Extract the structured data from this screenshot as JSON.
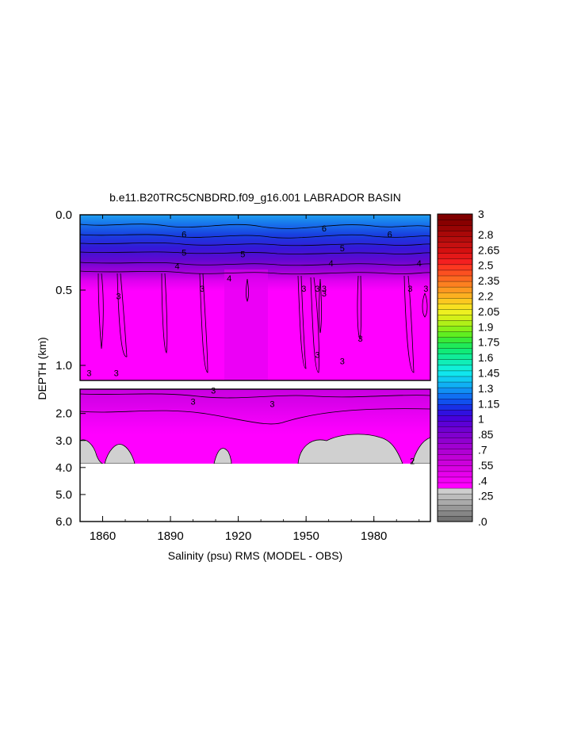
{
  "chart_data": {
    "type": "heatmap",
    "title": "b.e11.B20TRC5CNBDRD.f09_g16.001 LABRADOR BASIN",
    "xlabel": "Salinity (psu) RMS (MODEL - OBS)",
    "ylabel": "DEPTH (km)",
    "x_ticks": [
      "1860",
      "1890",
      "1920",
      "1950",
      "1980"
    ],
    "x_tick_values": [
      1860,
      1890,
      1920,
      1950,
      1980
    ],
    "xlim": [
      1850,
      2005
    ],
    "upper_panel": {
      "ylim": [
        0.0,
        1.1
      ],
      "y_ticks": [
        "0.0",
        "0.5",
        "1.0"
      ],
      "y_tick_values": [
        0.0,
        0.5,
        1.0
      ]
    },
    "lower_panel": {
      "ylim": [
        1.1,
        6.0
      ],
      "y_ticks": [
        "2.0",
        "3.0",
        "4.0",
        "5.0",
        "6.0"
      ],
      "y_tick_values": [
        2.0,
        3.0,
        4.0,
        5.0,
        6.0
      ],
      "data_bottom_depth": 3.9
    },
    "contour_labels": [
      {
        "text": "6",
        "x": 1896,
        "y": 0.13
      },
      {
        "text": "5",
        "x": 1896,
        "y": 0.25
      },
      {
        "text": "4",
        "x": 1893,
        "y": 0.34
      },
      {
        "text": "3",
        "x": 1867,
        "y": 0.54
      },
      {
        "text": "3",
        "x": 1904,
        "y": 0.49
      },
      {
        "text": "3",
        "x": 1854,
        "y": 1.05
      },
      {
        "text": "3",
        "x": 1866,
        "y": 1.05
      },
      {
        "text": "3",
        "x": 1909,
        "y": 1.14
      },
      {
        "text": "5",
        "x": 1922,
        "y": 0.26
      },
      {
        "text": "4",
        "x": 1916,
        "y": 0.42
      },
      {
        "text": "6",
        "x": 1958,
        "y": 0.09
      },
      {
        "text": "5",
        "x": 1966,
        "y": 0.22
      },
      {
        "text": "4",
        "x": 1961,
        "y": 0.32
      },
      {
        "text": "3",
        "x": 1949,
        "y": 0.49
      },
      {
        "text": "3",
        "x": 1955,
        "y": 0.49
      },
      {
        "text": "3",
        "x": 1958,
        "y": 0.49
      },
      {
        "text": "3",
        "x": 1958,
        "y": 0.52
      },
      {
        "text": "3",
        "x": 1974,
        "y": 0.82
      },
      {
        "text": "3",
        "x": 1955,
        "y": 0.93
      },
      {
        "text": "3",
        "x": 1966,
        "y": 0.97
      },
      {
        "text": "6",
        "x": 1987,
        "y": 0.13
      },
      {
        "text": "4",
        "x": 2000,
        "y": 0.32
      },
      {
        "text": "3",
        "x": 1996,
        "y": 0.49
      },
      {
        "text": "3",
        "x": 2003,
        "y": 0.49
      },
      {
        "text": "3",
        "x": 1900,
        "y": 1.55
      },
      {
        "text": "3",
        "x": 1935,
        "y": 1.65
      },
      {
        "text": "2",
        "x": 1997,
        "y": 3.75
      }
    ],
    "colorbar": {
      "labels": [
        "3",
        "2.8",
        "2.65",
        "2.5",
        "2.35",
        "2.2",
        "2.05",
        "1.9",
        "1.75",
        "1.6",
        "1.45",
        "1.3",
        "1.15",
        "1",
        ".85",
        ".7",
        ".55",
        ".4",
        ".25",
        ".0"
      ],
      "min": 0.0,
      "max": 3.0,
      "colors": [
        "#747474",
        "#868686",
        "#989898",
        "#aaaaaa",
        "#bcbcbc",
        "#cecece",
        "#ff00ff",
        "#f200f5",
        "#e600ec",
        "#d900e3",
        "#cc00dc",
        "#bf00d6",
        "#b000d4",
        "#a000d2",
        "#9000d0",
        "#8000cf",
        "#7000d2",
        "#5c00d6",
        "#4800dc",
        "#3010e0",
        "#1830e6",
        "#1050ee",
        "#1070f2",
        "#1090f4",
        "#10b0f4",
        "#10ccf2",
        "#10e6ee",
        "#10f0d8",
        "#10eeb8",
        "#10ec98",
        "#10ea78",
        "#20ea58",
        "#38ea38",
        "#60ee20",
        "#88f018",
        "#b0f018",
        "#d4f018",
        "#eef020",
        "#f8e020",
        "#fcc820",
        "#fcb020",
        "#fc9820",
        "#fc8020",
        "#fc6820",
        "#fc5020",
        "#fc3820",
        "#f42020",
        "#e41818",
        "#d41010",
        "#c41010",
        "#b40c0c",
        "#a80808",
        "#980404",
        "#880000",
        "#800000"
      ]
    }
  }
}
